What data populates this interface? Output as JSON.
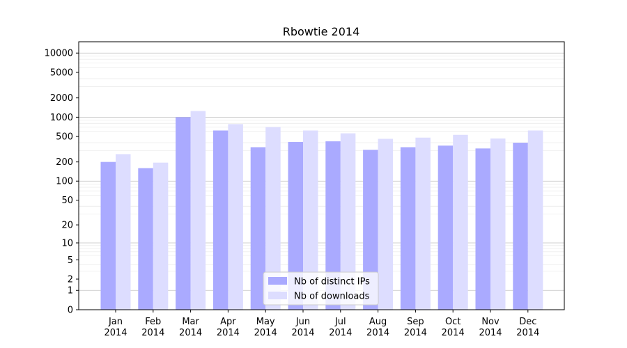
{
  "chart_data": {
    "type": "bar",
    "title": "Rbowtie 2014",
    "xlabel": "",
    "ylabel": "",
    "yscale": "log(1+y)",
    "ylim": [
      0,
      15000
    ],
    "yticks": [
      0,
      1,
      2,
      5,
      10,
      20,
      50,
      100,
      200,
      500,
      1000,
      2000,
      5000,
      10000
    ],
    "grid": "major and minor horizontal lines",
    "categories": [
      [
        "Jan",
        "2014"
      ],
      [
        "Feb",
        "2014"
      ],
      [
        "Mar",
        "2014"
      ],
      [
        "Apr",
        "2014"
      ],
      [
        "May",
        "2014"
      ],
      [
        "Jun",
        "2014"
      ],
      [
        "Jul",
        "2014"
      ],
      [
        "Aug",
        "2014"
      ],
      [
        "Sep",
        "2014"
      ],
      [
        "Oct",
        "2014"
      ],
      [
        "Nov",
        "2014"
      ],
      [
        "Dec",
        "2014"
      ]
    ],
    "series": [
      {
        "name": "Nb of distinct IPs",
        "color": "#aaaaff",
        "values": [
          200,
          160,
          1000,
          620,
          340,
          410,
          420,
          310,
          340,
          360,
          325,
          400
        ]
      },
      {
        "name": "Nb of downloads",
        "color": "#ddddff",
        "values": [
          265,
          195,
          1250,
          780,
          700,
          620,
          560,
          460,
          480,
          530,
          465,
          620
        ]
      }
    ],
    "legend_position": "bottom-center"
  }
}
